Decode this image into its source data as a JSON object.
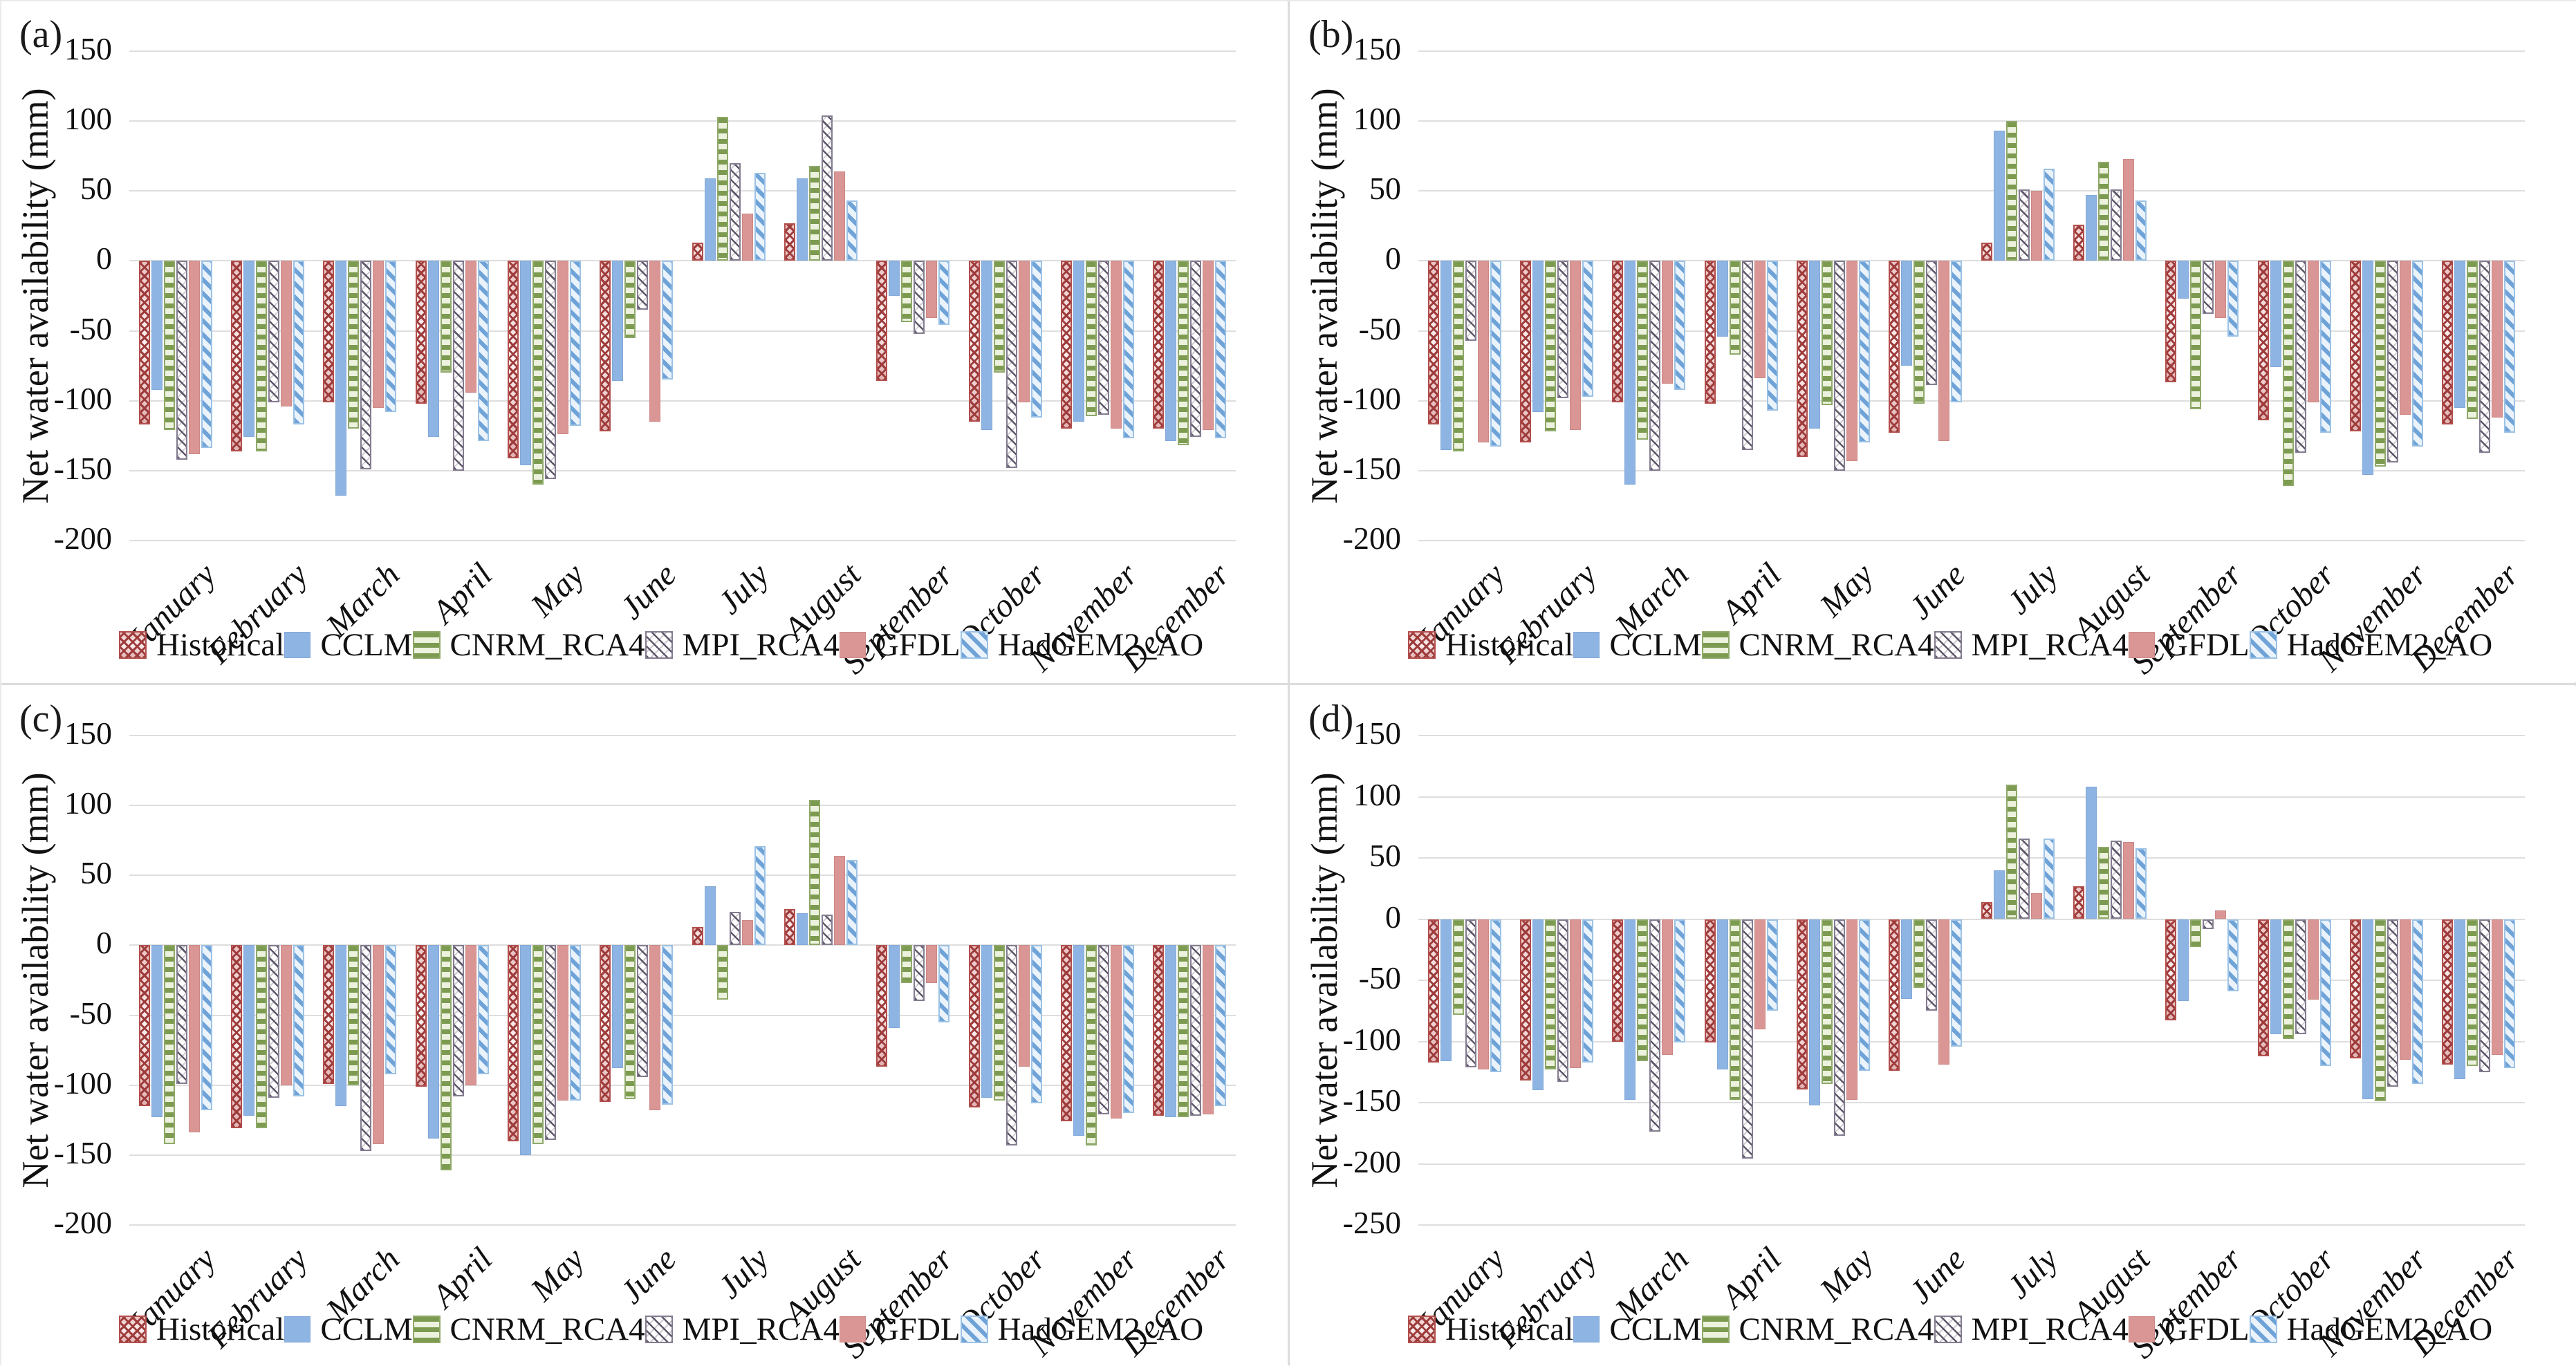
{
  "figure_title": "",
  "series_colors": {
    "historical": {
      "fg": "#9e3b3b",
      "bg": "#f6e3e3",
      "pattern": "checker-red"
    },
    "cclm": {
      "fg": "#8db4e2",
      "bg": "#8db4e2",
      "pattern": "solid-blue"
    },
    "cnrm_rca4": {
      "fg": "#7d9b50",
      "bg": "#edf2df",
      "pattern": "hstripe-green"
    },
    "mpi_rca4": {
      "fg": "#5f5769",
      "bg": "#ffffff",
      "pattern": "diag-gray"
    },
    "gfdl": {
      "fg": "#d99694",
      "bg": "#d99694",
      "pattern": "solid-salmon"
    },
    "hadgem2_ao": {
      "fg": "#6fa3d8",
      "bg": "#eaf3fb",
      "pattern": "diag-blue"
    }
  },
  "chart_data": [
    {
      "type": "bar",
      "panel_label": "(a)",
      "ylabel": "Net water availability (mm)",
      "categories": [
        "January",
        "February",
        "March",
        "April",
        "May",
        "June",
        "July",
        "August",
        "September",
        "October",
        "November",
        "December"
      ],
      "yticks": [
        150,
        100,
        50,
        0,
        -50,
        -100,
        -150,
        -200
      ],
      "ylim": [
        -200,
        150
      ],
      "grid": true,
      "legend_position": "bottom",
      "series": [
        {
          "name": "Historical",
          "pattern": "checker-red",
          "values": [
            -117,
            -136,
            -101,
            -102,
            -141,
            -122,
            13,
            27,
            -86,
            -115,
            -120,
            -120
          ]
        },
        {
          "name": "CCLM",
          "pattern": "solid-blue",
          "values": [
            -92,
            -126,
            -168,
            -126,
            -146,
            -86,
            59,
            59,
            -25,
            -121,
            -115,
            -129
          ]
        },
        {
          "name": "CNRM_RCA4",
          "pattern": "hstripe-green",
          "values": [
            -121,
            -136,
            -120,
            -80,
            -160,
            -55,
            103,
            68,
            -44,
            -80,
            -111,
            -132
          ]
        },
        {
          "name": "MPI_RCA4",
          "pattern": "diag-gray",
          "values": [
            -142,
            -101,
            -149,
            -150,
            -156,
            -35,
            70,
            104,
            -52,
            -148,
            -110,
            -126
          ]
        },
        {
          "name": "GFDL",
          "pattern": "solid-salmon",
          "values": [
            -138,
            -104,
            -105,
            -94,
            -124,
            -115,
            34,
            64,
            -41,
            -101,
            -120,
            -121
          ]
        },
        {
          "name": "HadGEM2_AO",
          "pattern": "diag-blue",
          "values": [
            -134,
            -117,
            -108,
            -129,
            -118,
            -85,
            63,
            43,
            -46,
            -112,
            -127,
            -127
          ]
        }
      ]
    },
    {
      "type": "bar",
      "panel_label": "(b)",
      "ylabel": "Net water availability (mm)",
      "categories": [
        "January",
        "February",
        "March",
        "April",
        "May",
        "June",
        "July",
        "August",
        "September",
        "October",
        "November",
        "December"
      ],
      "yticks": [
        150,
        100,
        50,
        0,
        -50,
        -100,
        -150,
        -200
      ],
      "ylim": [
        -200,
        150
      ],
      "grid": true,
      "legend_position": "bottom",
      "series": [
        {
          "name": "Historical",
          "pattern": "checker-red",
          "values": [
            -117,
            -130,
            -101,
            -102,
            -140,
            -123,
            13,
            26,
            -87,
            -114,
            -122,
            -117
          ]
        },
        {
          "name": "CCLM",
          "pattern": "solid-blue",
          "values": [
            -135,
            -108,
            -160,
            -54,
            -120,
            -75,
            93,
            47,
            -27,
            -76,
            -153,
            -105
          ]
        },
        {
          "name": "CNRM_RCA4",
          "pattern": "hstripe-green",
          "values": [
            -136,
            -122,
            -128,
            -67,
            -103,
            -102,
            100,
            71,
            -106,
            -161,
            -147,
            -113
          ]
        },
        {
          "name": "MPI_RCA4",
          "pattern": "diag-gray",
          "values": [
            -57,
            -98,
            -150,
            -135,
            -150,
            -89,
            51,
            51,
            -38,
            -137,
            -144,
            -137
          ]
        },
        {
          "name": "GFDL",
          "pattern": "solid-salmon",
          "values": [
            -130,
            -121,
            -88,
            -84,
            -143,
            -129,
            50,
            73,
            -41,
            -101,
            -110,
            -112
          ]
        },
        {
          "name": "HadGEM2_AO",
          "pattern": "diag-blue",
          "values": [
            -133,
            -97,
            -92,
            -107,
            -130,
            -101,
            66,
            43,
            -54,
            -123,
            -133,
            -123
          ]
        }
      ]
    },
    {
      "type": "bar",
      "panel_label": "(c)",
      "ylabel": "Net water availability (mm)",
      "categories": [
        "January",
        "February",
        "March",
        "April",
        "May",
        "June",
        "July",
        "August",
        "September",
        "October",
        "November",
        "December"
      ],
      "yticks": [
        150,
        100,
        50,
        0,
        -50,
        -100,
        -150,
        -200
      ],
      "ylim": [
        -200,
        150
      ],
      "grid": true,
      "legend_position": "bottom",
      "series": [
        {
          "name": "Historical",
          "pattern": "checker-red",
          "values": [
            -115,
            -131,
            -99,
            -101,
            -140,
            -112,
            13,
            26,
            -87,
            -116,
            -126,
            -122
          ]
        },
        {
          "name": "CCLM",
          "pattern": "solid-blue",
          "values": [
            -123,
            -122,
            -115,
            -138,
            -150,
            -88,
            42,
            23,
            -59,
            -109,
            -136,
            -123
          ]
        },
        {
          "name": "CNRM_RCA4",
          "pattern": "hstripe-green",
          "values": [
            -142,
            -131,
            -100,
            -161,
            -142,
            -110,
            -39,
            104,
            -27,
            -111,
            -143,
            -123
          ]
        },
        {
          "name": "MPI_RCA4",
          "pattern": "diag-gray",
          "values": [
            -99,
            -109,
            -147,
            -108,
            -139,
            -94,
            24,
            22,
            -40,
            -143,
            -121,
            -122
          ]
        },
        {
          "name": "GFDL",
          "pattern": "solid-salmon",
          "values": [
            -134,
            -100,
            -142,
            -100,
            -111,
            -118,
            18,
            64,
            -27,
            -87,
            -124,
            -121
          ]
        },
        {
          "name": "HadGEM2_AO",
          "pattern": "diag-blue",
          "values": [
            -118,
            -108,
            -92,
            -92,
            -111,
            -114,
            71,
            61,
            -55,
            -113,
            -120,
            -115
          ]
        }
      ]
    },
    {
      "type": "bar",
      "panel_label": "(d)",
      "ylabel": "Net water availability (mm)",
      "categories": [
        "January",
        "February",
        "March",
        "April",
        "May",
        "June",
        "July",
        "August",
        "September",
        "October",
        "November",
        "December"
      ],
      "yticks": [
        150,
        100,
        50,
        0,
        -50,
        -100,
        -150,
        -200,
        -250
      ],
      "ylim": [
        -250,
        150
      ],
      "grid": true,
      "legend_position": "bottom",
      "series": [
        {
          "name": "Historical",
          "pattern": "checker-red",
          "values": [
            -117,
            -132,
            -100,
            -101,
            -139,
            -124,
            14,
            27,
            -83,
            -112,
            -114,
            -119
          ]
        },
        {
          "name": "CCLM",
          "pattern": "solid-blue",
          "values": [
            -116,
            -140,
            -148,
            -123,
            -152,
            -65,
            40,
            108,
            -67,
            -94,
            -147,
            -131
          ]
        },
        {
          "name": "CNRM_RCA4",
          "pattern": "hstripe-green",
          "values": [
            -78,
            -123,
            -116,
            -148,
            -135,
            -56,
            110,
            59,
            -23,
            -98,
            -149,
            -120
          ]
        },
        {
          "name": "MPI_RCA4",
          "pattern": "diag-gray",
          "values": [
            -121,
            -133,
            -174,
            -196,
            -177,
            -75,
            66,
            64,
            -8,
            -94,
            -137,
            -125
          ]
        },
        {
          "name": "GFDL",
          "pattern": "solid-salmon",
          "values": [
            -123,
            -122,
            -111,
            -90,
            -148,
            -119,
            21,
            63,
            7,
            -66,
            -115,
            -111
          ]
        },
        {
          "name": "HadGEM2_AO",
          "pattern": "diag-blue",
          "values": [
            -125,
            -117,
            -101,
            -75,
            -124,
            -104,
            66,
            58,
            -59,
            -120,
            -135,
            -122
          ]
        }
      ]
    }
  ]
}
